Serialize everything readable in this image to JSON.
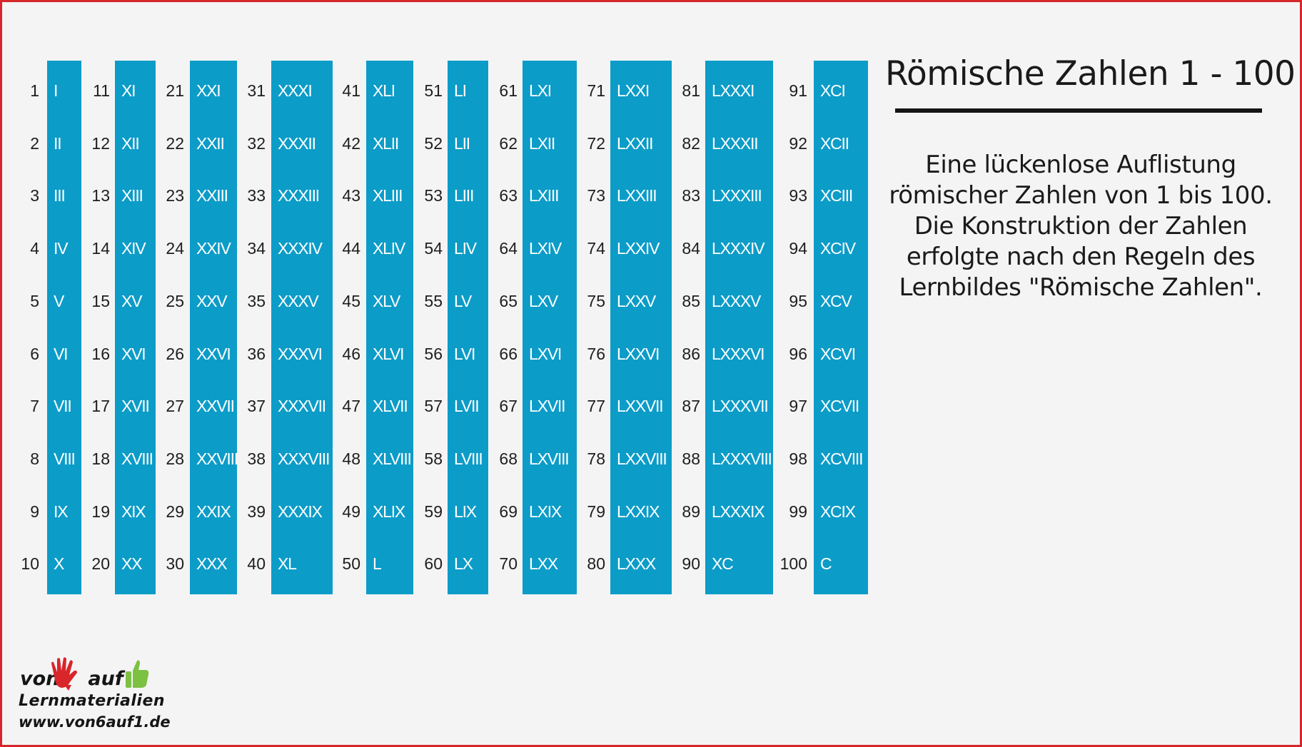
{
  "title": "Römische Zahlen 1 - 100",
  "description_lines": [
    "Eine lückenlose Auflistung",
    "römischer Zahlen von 1 bis 100.",
    "Die Konstruktion der Zahlen",
    "erfolgte nach den Regeln des",
    "Lernbildes \"Römische Zahlen\"."
  ],
  "columns": [
    {
      "numbers": [
        "1",
        "2",
        "3",
        "4",
        "5",
        "6",
        "7",
        "8",
        "9",
        "10"
      ],
      "romans": [
        "I",
        "II",
        "III",
        "IV",
        "V",
        "VI",
        "VII",
        "VIII",
        "IX",
        "X"
      ]
    },
    {
      "numbers": [
        "11",
        "12",
        "13",
        "14",
        "15",
        "16",
        "17",
        "18",
        "19",
        "20"
      ],
      "romans": [
        "XI",
        "XII",
        "XIII",
        "XIV",
        "XV",
        "XVI",
        "XVII",
        "XVIII",
        "XIX",
        "XX"
      ]
    },
    {
      "numbers": [
        "21",
        "22",
        "23",
        "24",
        "25",
        "26",
        "27",
        "28",
        "29",
        "30"
      ],
      "romans": [
        "XXI",
        "XXII",
        "XXIII",
        "XXIV",
        "XXV",
        "XXVI",
        "XXVII",
        "XXVIII",
        "XXIX",
        "XXX"
      ]
    },
    {
      "numbers": [
        "31",
        "32",
        "33",
        "34",
        "35",
        "36",
        "37",
        "38",
        "39",
        "40"
      ],
      "romans": [
        "XXXI",
        "XXXII",
        "XXXIII",
        "XXXIV",
        "XXXV",
        "XXXVI",
        "XXXVII",
        "XXXVIII",
        "XXXIX",
        "XL"
      ]
    },
    {
      "numbers": [
        "41",
        "42",
        "43",
        "44",
        "45",
        "46",
        "47",
        "48",
        "49",
        "50"
      ],
      "romans": [
        "XLI",
        "XLII",
        "XLIII",
        "XLIV",
        "XLV",
        "XLVI",
        "XLVII",
        "XLVIII",
        "XLIX",
        "L"
      ]
    },
    {
      "numbers": [
        "51",
        "52",
        "53",
        "54",
        "55",
        "56",
        "57",
        "58",
        "59",
        "60"
      ],
      "romans": [
        "LI",
        "LII",
        "LIII",
        "LIV",
        "LV",
        "LVI",
        "LVII",
        "LVIII",
        "LIX",
        "LX"
      ]
    },
    {
      "numbers": [
        "61",
        "62",
        "63",
        "64",
        "65",
        "66",
        "67",
        "68",
        "69",
        "70"
      ],
      "romans": [
        "LXI",
        "LXII",
        "LXIII",
        "LXIV",
        "LXV",
        "LXVI",
        "LXVII",
        "LXVIII",
        "LXIX",
        "LXX"
      ]
    },
    {
      "numbers": [
        "71",
        "72",
        "73",
        "74",
        "75",
        "76",
        "77",
        "78",
        "79",
        "80"
      ],
      "romans": [
        "LXXI",
        "LXXII",
        "LXXIII",
        "LXXIV",
        "LXXV",
        "LXXVI",
        "LXXVII",
        "LXXVIII",
        "LXXIX",
        "LXXX"
      ]
    },
    {
      "numbers": [
        "81",
        "82",
        "83",
        "84",
        "85",
        "86",
        "87",
        "88",
        "89",
        "90"
      ],
      "romans": [
        "LXXXI",
        "LXXXII",
        "LXXXIII",
        "LXXXIV",
        "LXXXV",
        "LXXXVI",
        "LXXXVII",
        "LXXXVIII",
        "LXXXIX",
        "XC"
      ]
    },
    {
      "numbers": [
        "91",
        "92",
        "93",
        "94",
        "95",
        "96",
        "97",
        "98",
        "99",
        "100"
      ],
      "romans": [
        "XCI",
        "XCII",
        "XCIII",
        "XCIV",
        "XCV",
        "XCVI",
        "XCVII",
        "XCVIII",
        "XCIX",
        "C"
      ]
    }
  ],
  "logo": {
    "word_left": "von",
    "word_right": "auf",
    "subtitle": "Lernmaterialien",
    "url": "www.von6auf1.de"
  },
  "colors": {
    "bar": "#0c9cc8",
    "frame": "#d6262b",
    "hand_red": "#d8262b",
    "hand_green": "#7cc142"
  }
}
